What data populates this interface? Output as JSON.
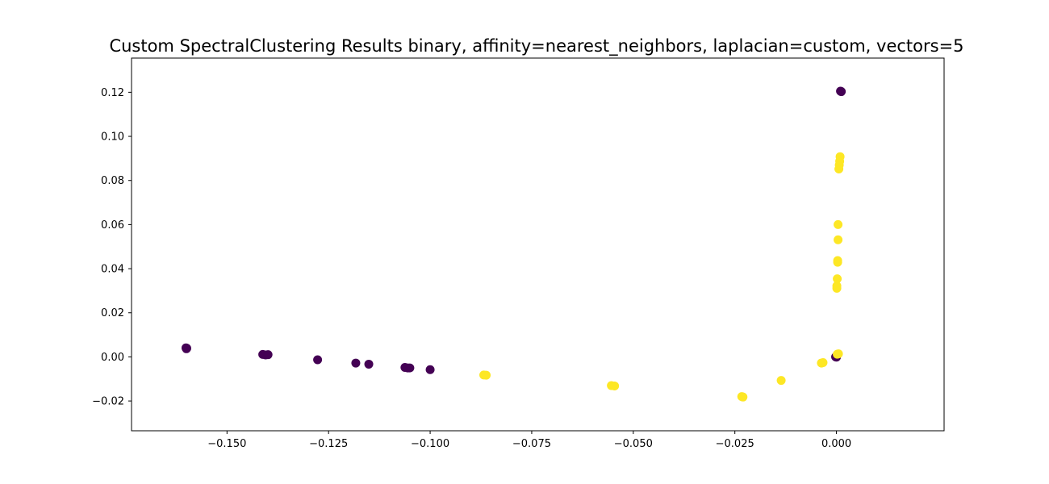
{
  "chart_data": {
    "type": "scatter",
    "title": "Custom SpectralClustering Results binary, affinity=nearest_neighbors, laplacian=custom, vectors=5",
    "xlabel": "",
    "ylabel": "",
    "xlim": [
      -0.1735,
      0.0265
    ],
    "ylim": [
      -0.0335,
      0.1355
    ],
    "xticks": [
      -0.15,
      -0.125,
      -0.1,
      -0.075,
      -0.05,
      -0.025,
      0.0
    ],
    "xtick_labels": [
      "−0.150",
      "−0.125",
      "−0.100",
      "−0.075",
      "−0.050",
      "−0.025",
      "0.000"
    ],
    "yticks": [
      -0.02,
      0.0,
      0.02,
      0.04,
      0.06,
      0.08,
      0.1,
      0.12
    ],
    "ytick_labels": [
      "−0.02",
      "0.00",
      "0.02",
      "0.04",
      "0.06",
      "0.08",
      "0.10",
      "0.12"
    ],
    "grid": false,
    "series": [
      {
        "color": "#440154",
        "points": [
          [
            -0.1601,
            0.0041
          ],
          [
            -0.16,
            0.0037
          ],
          [
            -0.1599,
            0.0039
          ],
          [
            -0.1412,
            0.0011
          ],
          [
            -0.1405,
            0.0009
          ],
          [
            -0.1399,
            0.001
          ],
          [
            -0.1277,
            -0.0013
          ],
          [
            -0.1183,
            -0.0028
          ],
          [
            -0.1151,
            -0.0033
          ],
          [
            -0.1062,
            -0.0048
          ],
          [
            -0.1055,
            -0.005
          ],
          [
            -0.105,
            -0.005
          ],
          [
            -0.1,
            -0.0058
          ],
          [
            0.0,
            -0.0001
          ],
          [
            0.0,
            0.0001
          ],
          [
            -0.0002,
            0.0
          ],
          [
            0.001,
            0.1205
          ],
          [
            0.0012,
            0.1203
          ]
        ]
      },
      {
        "color": "#fde725",
        "points": [
          [
            -0.0868,
            -0.0082
          ],
          [
            -0.0862,
            -0.0083
          ],
          [
            -0.0554,
            -0.013
          ],
          [
            -0.0546,
            -0.0132
          ],
          [
            -0.0233,
            -0.018
          ],
          [
            -0.023,
            -0.0182
          ],
          [
            -0.0136,
            -0.0107
          ],
          [
            -0.0037,
            -0.0028
          ],
          [
            -0.0033,
            -0.0026
          ],
          [
            0.0002,
            0.0012
          ],
          [
            0.0005,
            0.0014
          ],
          [
            0.0001,
            0.0311
          ],
          [
            0.0001,
            0.0322
          ],
          [
            0.0002,
            0.0354
          ],
          [
            0.0003,
            0.0429
          ],
          [
            0.0003,
            0.0437
          ],
          [
            0.0004,
            0.0531
          ],
          [
            0.0004,
            0.06
          ],
          [
            0.0006,
            0.0852
          ],
          [
            0.0007,
            0.087
          ],
          [
            0.0008,
            0.0887
          ],
          [
            0.0009,
            0.0908
          ]
        ]
      }
    ]
  }
}
